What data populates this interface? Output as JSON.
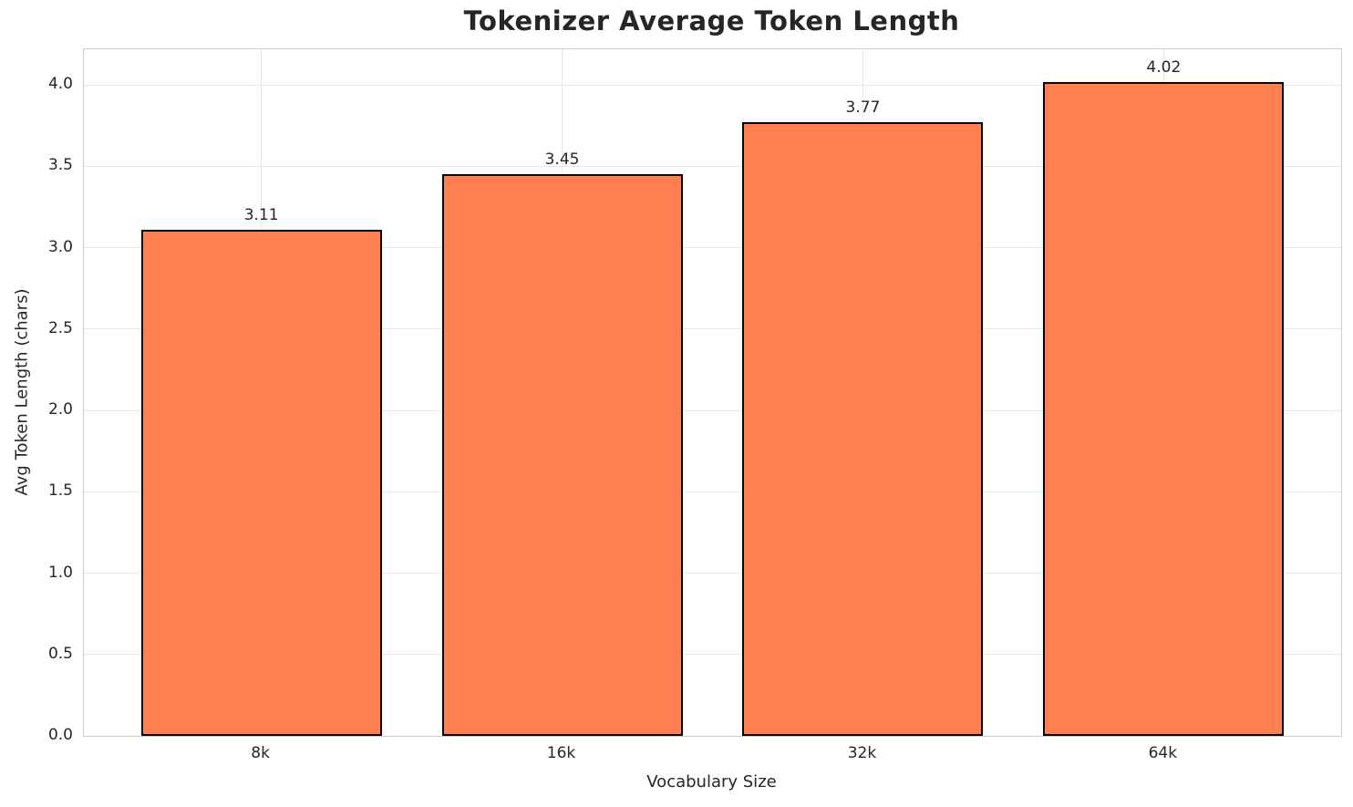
{
  "chart_data": {
    "type": "bar",
    "title": "Tokenizer Average Token Length",
    "xlabel": "Vocabulary Size",
    "ylabel": "Avg Token Length (chars)",
    "categories": [
      "8k",
      "16k",
      "32k",
      "64k"
    ],
    "values": [
      3.11,
      3.45,
      3.77,
      4.02
    ],
    "value_labels": [
      "3.11",
      "3.45",
      "3.77",
      "4.02"
    ],
    "yticks": [
      0.0,
      0.5,
      1.0,
      1.5,
      2.0,
      2.5,
      3.0,
      3.5,
      4.0
    ],
    "ytick_labels": [
      "0.0",
      "0.5",
      "1.0",
      "1.5",
      "2.0",
      "2.5",
      "3.0",
      "3.5",
      "4.0"
    ],
    "ylim": [
      0,
      4.22
    ],
    "grid": true,
    "legend_position": "none",
    "colors": {
      "bar_fill": "#FF7F50",
      "bar_edge": "#000000",
      "grid_line": "#e7e7e7",
      "spine": "#cccccc",
      "text": "#262626",
      "background": "#ffffff"
    }
  }
}
